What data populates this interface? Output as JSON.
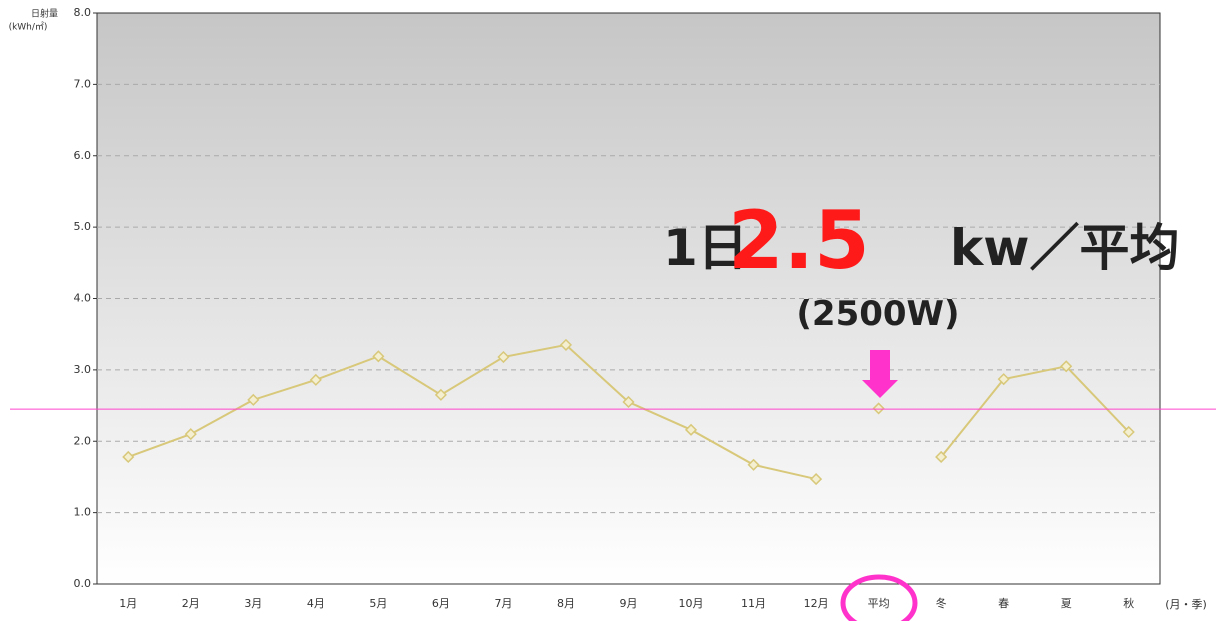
{
  "chart_data": {
    "type": "line",
    "y_label": "日射量",
    "y_unit": "(kWh/㎡)",
    "x_label": "(月・季)",
    "categories": [
      "1月",
      "2月",
      "3月",
      "4月",
      "5月",
      "6月",
      "7月",
      "8月",
      "9月",
      "10月",
      "11月",
      "12月",
      "平均",
      "冬",
      "春",
      "夏",
      "秋"
    ],
    "series": [
      {
        "color": "#d8c87a",
        "values": [
          1.78,
          2.1,
          2.58,
          2.86,
          3.19,
          2.65,
          3.18,
          3.35,
          2.55,
          2.16,
          1.67,
          1.47,
          null,
          null,
          null,
          null,
          null
        ]
      },
      {
        "color": "#d8c87a",
        "values": [
          null,
          null,
          null,
          null,
          null,
          null,
          null,
          null,
          null,
          null,
          null,
          null,
          2.46,
          null,
          null,
          null,
          null
        ]
      },
      {
        "color": "#d8c87a",
        "values": [
          null,
          null,
          null,
          null,
          null,
          null,
          null,
          null,
          null,
          null,
          null,
          null,
          null,
          1.78,
          2.87,
          3.05,
          2.13
        ]
      }
    ],
    "ylim": [
      0,
      8
    ],
    "yticks": [
      {
        "value": 0,
        "label": "0.0"
      },
      {
        "value": 1,
        "label": "1.0"
      },
      {
        "value": 2,
        "label": "2.0"
      },
      {
        "value": 3,
        "label": "3.0"
      },
      {
        "value": 4,
        "label": "4.0"
      },
      {
        "value": 5,
        "label": "5.0"
      },
      {
        "value": 6,
        "label": "6.0"
      },
      {
        "value": 7,
        "label": "7.0"
      },
      {
        "value": 8,
        "label": "8.0"
      }
    ],
    "grid": true,
    "reference_line": {
      "value": 2.45,
      "color": "#ff44cc"
    },
    "annotation": {
      "prefix": "1日",
      "value_text": "2.5",
      "suffix": "kw／平均",
      "sub": "(2500W)"
    }
  }
}
